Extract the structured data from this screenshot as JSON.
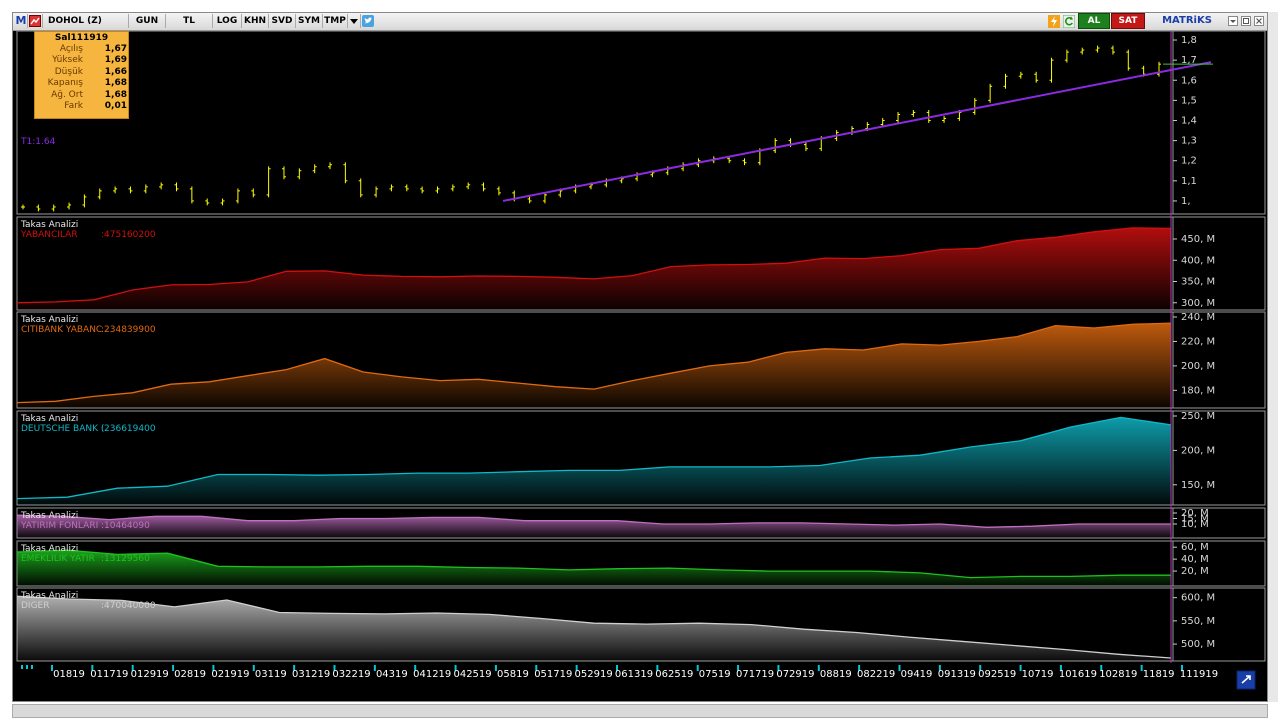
{
  "toolbar": {
    "m_label": "M",
    "symbol": "DOHOL (Z)",
    "period": "GUN",
    "currency": "TL",
    "log": "LOG",
    "khn": "KHN",
    "svd": "SVD",
    "sym": "SYM",
    "tmp": "TMP",
    "buy": "AL",
    "sell": "SAT",
    "brand": "MATRiKS"
  },
  "info_box": {
    "title": "Sal111919",
    "rows": [
      {
        "label": "Açılış",
        "value": "1,67"
      },
      {
        "label": "Yüksek",
        "value": "1,69"
      },
      {
        "label": "Düşük",
        "value": "1,66"
      },
      {
        "label": "Kapanış",
        "value": "1,68"
      },
      {
        "label": "Ağ. Ort",
        "value": "1,68"
      },
      {
        "label": "Fark",
        "value": "0,01"
      }
    ]
  },
  "trend_label": "T1:1.64",
  "colors": {
    "price": "#ffff00",
    "trend": "#8a2be2",
    "yabancilar": "#d01010",
    "citibank": "#e06a10",
    "deutsche": "#10b8c8",
    "yatirim": "#c070c0",
    "emeklilik": "#20c020",
    "diger": "#cfcfcf",
    "tick": "#00c8d8"
  },
  "chart_data": [
    {
      "type": "candlestick",
      "title": "DOHOL (Z)",
      "y_ticks": [
        "1,8",
        "1,7",
        "1,6",
        "1,5",
        "1,4",
        "1,3",
        "1,2",
        "1,1",
        "1,"
      ],
      "ylim": [
        0.95,
        1.82
      ],
      "close": [
        0.97,
        0.96,
        0.97,
        0.98,
        1.02,
        1.05,
        1.06,
        1.05,
        1.07,
        1.08,
        1.06,
        1.0,
        0.99,
        1.0,
        1.05,
        1.03,
        1.16,
        1.12,
        1.15,
        1.17,
        1.18,
        1.1,
        1.03,
        1.06,
        1.07,
        1.06,
        1.05,
        1.06,
        1.07,
        1.08,
        1.06,
        1.04,
        1.01,
        1.0,
        1.03,
        1.05,
        1.07,
        1.08,
        1.1,
        1.11,
        1.13,
        1.14,
        1.16,
        1.18,
        1.2,
        1.21,
        1.2,
        1.19,
        1.25,
        1.3,
        1.28,
        1.26,
        1.31,
        1.34,
        1.36,
        1.38,
        1.4,
        1.43,
        1.44,
        1.4,
        1.41,
        1.44,
        1.5,
        1.57,
        1.62,
        1.63,
        1.6,
        1.7,
        1.74,
        1.75,
        1.76,
        1.74,
        1.66,
        1.63,
        1.68
      ],
      "trendline": {
        "label": "T1",
        "value": 1.64
      }
    },
    {
      "type": "area",
      "panel_title": "Takas Analizi",
      "series_name": "YABANCILAR",
      "value_label": ":475160200",
      "y_ticks": [
        "450, M",
        "400, M",
        "350, M",
        "300, M"
      ],
      "ylim": [
        290,
        490
      ],
      "values": [
        300,
        302,
        307,
        330,
        342,
        343,
        349,
        374,
        375,
        365,
        362,
        361,
        363,
        362,
        360,
        356,
        364,
        385,
        389,
        390,
        393,
        405,
        404,
        411,
        425,
        428,
        446,
        454,
        467,
        476,
        475
      ]
    },
    {
      "type": "area",
      "panel_title": "Takas Analizi",
      "series_name": "CITIBANK YABANC",
      "value_label": ":234839900",
      "y_ticks": [
        "240, M",
        "220, M",
        "200, M",
        "180, M"
      ],
      "ylim": [
        168,
        240
      ],
      "values": [
        170,
        171,
        175,
        178,
        185,
        187,
        192,
        197,
        206,
        195,
        191,
        188,
        189,
        186,
        183,
        181,
        188,
        194,
        200,
        203,
        211,
        214,
        213,
        218,
        217,
        220,
        224,
        233,
        231,
        234,
        235
      ]
    },
    {
      "type": "area",
      "panel_title": "Takas Analizi",
      "series_name": "DEUTSCHE BANK (",
      "value_label": ":236619400",
      "y_ticks": [
        "250, M",
        "200, M",
        "150, M"
      ],
      "ylim": [
        125,
        250
      ],
      "values": [
        130,
        132,
        145,
        148,
        165,
        165,
        164,
        165,
        167,
        167,
        169,
        171,
        171,
        176,
        176,
        176,
        178,
        189,
        193,
        205,
        214,
        234,
        248,
        237
      ]
    },
    {
      "type": "area",
      "panel_title": "Takas Analizi",
      "series_name": "YATIRIM FONLARI",
      "value_label": ":10464090",
      "y_ticks": [
        "20, M",
        "15, M",
        "10, M"
      ],
      "ylim": [
        0,
        20
      ],
      "values": [
        18,
        17,
        14,
        17,
        17,
        13,
        13,
        15,
        15,
        16,
        16,
        13,
        13,
        13,
        10,
        10,
        11,
        11,
        10,
        9,
        10,
        7,
        8,
        10,
        10,
        10
      ]
    },
    {
      "type": "area",
      "panel_title": "Takas Analizi",
      "series_name": "EMEKLILIK YATIR",
      "value_label": ":13129560",
      "y_ticks": [
        "60, M",
        "40, M",
        "20, M"
      ],
      "ylim": [
        0,
        62
      ],
      "values": [
        52,
        55,
        48,
        50,
        28,
        27,
        27,
        28,
        28,
        26,
        25,
        22,
        24,
        25,
        22,
        20,
        20,
        20,
        17,
        9,
        11,
        11,
        13,
        13
      ]
    },
    {
      "type": "area",
      "panel_title": "Takas Analizi",
      "series_name": "DIGER",
      "value_label": ":470040000",
      "y_ticks": [
        "600, M",
        "550, M",
        "500, M"
      ],
      "ylim": [
        470,
        610
      ],
      "values": [
        603,
        597,
        594,
        580,
        595,
        568,
        566,
        565,
        567,
        564,
        555,
        545,
        543,
        545,
        542,
        532,
        525,
        515,
        506,
        497,
        488,
        478,
        470
      ]
    }
  ],
  "x_axis_labels": [
    "01819",
    "011719",
    "012919",
    "02819",
    "021919",
    "03119",
    "031219",
    "032219",
    "04319",
    "041219",
    "042519",
    "05819",
    "051719",
    "052919",
    "061319",
    "062519",
    "07519",
    "071719",
    "072919",
    "08819",
    "082219",
    "09419",
    "091319",
    "092519",
    "10719",
    "101619",
    "102819",
    "11819",
    "111919"
  ]
}
